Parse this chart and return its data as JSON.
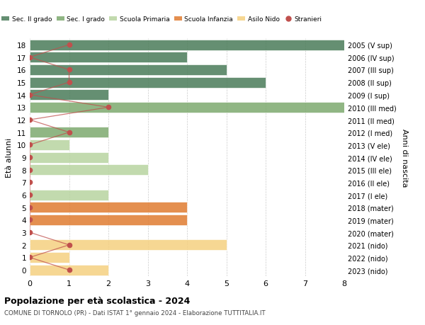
{
  "ages": [
    18,
    17,
    16,
    15,
    14,
    13,
    12,
    11,
    10,
    9,
    8,
    7,
    6,
    5,
    4,
    3,
    2,
    1,
    0
  ],
  "years": [
    "2005 (V sup)",
    "2006 (IV sup)",
    "2007 (III sup)",
    "2008 (II sup)",
    "2009 (I sup)",
    "2010 (III med)",
    "2011 (II med)",
    "2012 (I med)",
    "2013 (V ele)",
    "2014 (IV ele)",
    "2015 (III ele)",
    "2016 (II ele)",
    "2017 (I ele)",
    "2018 (mater)",
    "2019 (mater)",
    "2020 (mater)",
    "2021 (nido)",
    "2022 (nido)",
    "2023 (nido)"
  ],
  "bar_values": [
    8,
    4,
    5,
    6,
    2,
    8,
    0,
    2,
    1,
    2,
    3,
    0,
    2,
    4,
    4,
    0,
    5,
    1,
    2
  ],
  "bar_colors": [
    "#4a7c59",
    "#4a7c59",
    "#4a7c59",
    "#4a7c59",
    "#4a7c59",
    "#7daa6e",
    "#7daa6e",
    "#7daa6e",
    "#b8d4a0",
    "#b8d4a0",
    "#b8d4a0",
    "#b8d4a0",
    "#b8d4a0",
    "#e07b30",
    "#e07b30",
    "#e07b30",
    "#f5d080",
    "#f5d080",
    "#f5d080"
  ],
  "stranieri_values": [
    1,
    0,
    1,
    1,
    0,
    2,
    0,
    1,
    0,
    0,
    0,
    0,
    0,
    0,
    0,
    0,
    1,
    0,
    1
  ],
  "title": "Popolazione per età scolastica - 2024",
  "subtitle": "COMUNE DI TORNOLO (PR) - Dati ISTAT 1° gennaio 2024 - Elaborazione TUTTITALIA.IT",
  "ylabel": "Età alunni",
  "right_label": "Anni di nascita",
  "xlim": [
    0,
    8
  ],
  "legend_labels": [
    "Sec. II grado",
    "Sec. I grado",
    "Scuola Primaria",
    "Scuola Infanzia",
    "Asilo Nido",
    "Stranieri"
  ],
  "legend_colors": [
    "#4a7c59",
    "#7daa6e",
    "#b8d4a0",
    "#e07b30",
    "#f5d080",
    "#b22222"
  ],
  "bg_color": "#ffffff",
  "bar_alpha": 0.85,
  "grid_color": "#cccccc",
  "stranieri_line_color": "#c0504d"
}
